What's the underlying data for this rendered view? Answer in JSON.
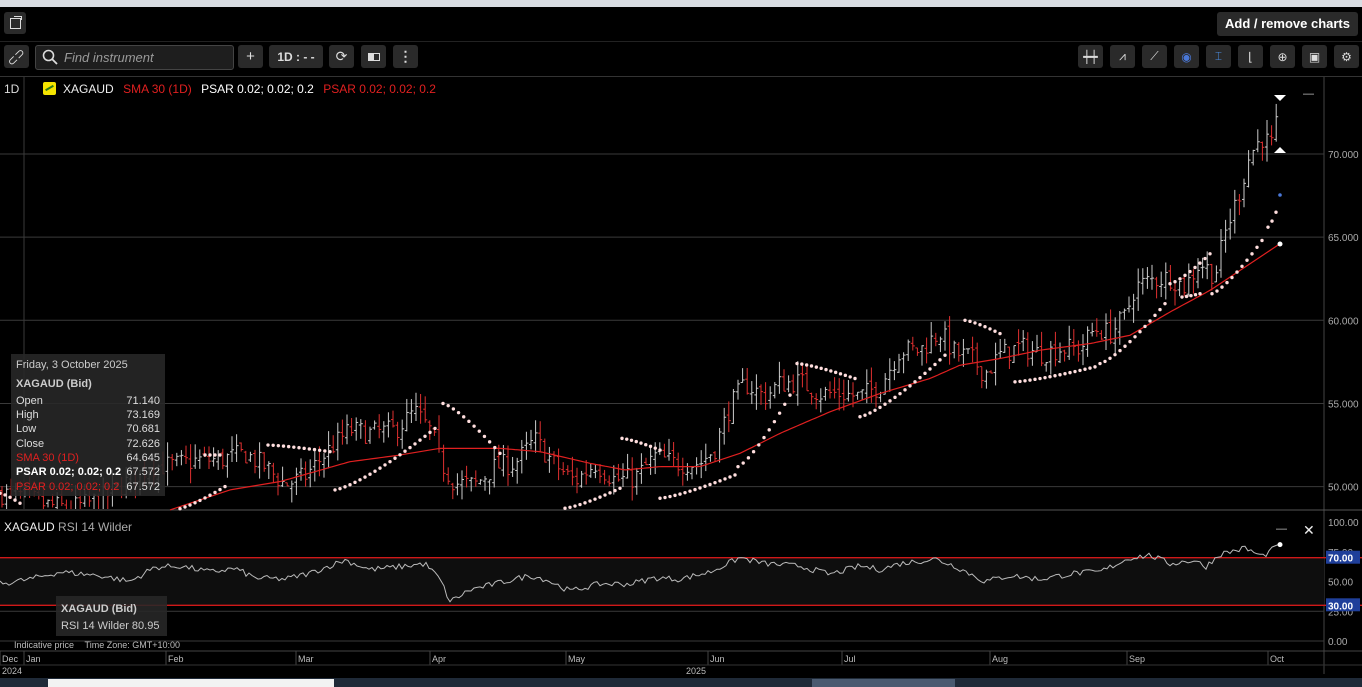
{
  "toolbar": {
    "add_remove_label": "Add / remove charts",
    "search_placeholder": "Find instrument",
    "add_label": "+",
    "interval_label": "1D : - -"
  },
  "legend": {
    "timeframe": "1D",
    "instrument": "XAGAUD",
    "sma": "SMA 30 (1D)",
    "psar1": "PSAR 0.02; 0.02; 0.2",
    "psar2": "PSAR 0.02; 0.02; 0.2"
  },
  "info_box": {
    "date": "Friday, 3 October 2025",
    "instrument": "XAGAUD (Bid)",
    "open_label": "Open",
    "open": "71.140",
    "high_label": "High",
    "high": "73.169",
    "low_label": "Low",
    "low": "70.681",
    "close_label": "Close",
    "close": "72.626",
    "sma_label": "SMA 30 (1D)",
    "sma": "64.645",
    "psar1_label": "PSAR 0.02; 0.02; 0.2",
    "psar1": "67.572",
    "psar2_label": "PSAR 0.02; 0.02; 0.2",
    "psar2": "67.572"
  },
  "rsi": {
    "label_instrument": "XAGAUD",
    "label_indicator": "RSI 14 Wilder",
    "info_instrument": "XAGAUD (Bid)",
    "info_value_label": "RSI 14 Wilder 80.95",
    "ticks": [
      "100.00",
      "75.00",
      "50.00",
      "25.00",
      "0.00"
    ],
    "upper_level": "70.00",
    "lower_level": "30.00",
    "close_glyph": "✕",
    "minimize_glyph": "—"
  },
  "footer": {
    "indicative": "Indicative price",
    "timezone": "Time Zone: GMT+10:00"
  },
  "colors": {
    "up": "#cccccc",
    "down": "#e03030",
    "sma": "#e02020",
    "psar": "#ffdede",
    "rsi": "#bbbbbb",
    "level_line": "#d01818"
  },
  "chart_data": {
    "type": "ohlc",
    "price_ticks": [
      "70.000",
      "65.000",
      "60.000",
      "55.000",
      "50.000"
    ],
    "ylim": [
      48.6,
      73.6
    ],
    "x_labels": [
      "Dec",
      "Jan",
      "Feb",
      "Mar",
      "Apr",
      "May",
      "Jun",
      "Jul",
      "Aug",
      "Sep",
      "Oct"
    ],
    "year_labels": [
      "2024",
      "2025"
    ],
    "anchors": [
      {
        "x": 0,
        "c": 49.6
      },
      {
        "x": 25,
        "c": 49.4
      },
      {
        "x": 45,
        "c": 48.9
      },
      {
        "x": 70,
        "c": 48.7
      },
      {
        "x": 100,
        "c": 49.2
      },
      {
        "x": 125,
        "c": 50.2
      },
      {
        "x": 150,
        "c": 51.2
      },
      {
        "x": 175,
        "c": 51.3
      },
      {
        "x": 200,
        "c": 51.6
      },
      {
        "x": 220,
        "c": 51.6
      },
      {
        "x": 245,
        "c": 52.0
      },
      {
        "x": 265,
        "c": 51.2
      },
      {
        "x": 285,
        "c": 50.1
      },
      {
        "x": 305,
        "c": 50.6
      },
      {
        "x": 330,
        "c": 52.3
      },
      {
        "x": 350,
        "c": 53.4
      },
      {
        "x": 370,
        "c": 53.2
      },
      {
        "x": 395,
        "c": 53.4
      },
      {
        "x": 415,
        "c": 54.5
      },
      {
        "x": 432,
        "c": 53.2
      },
      {
        "x": 440,
        "c": 51.5
      },
      {
        "x": 455,
        "c": 50.2
      },
      {
        "x": 475,
        "c": 50.1
      },
      {
        "x": 495,
        "c": 51.2
      },
      {
        "x": 515,
        "c": 51.4
      },
      {
        "x": 535,
        "c": 52.8
      },
      {
        "x": 555,
        "c": 51.3
      },
      {
        "x": 575,
        "c": 50.3
      },
      {
        "x": 595,
        "c": 51.4
      },
      {
        "x": 615,
        "c": 50.4
      },
      {
        "x": 635,
        "c": 50.5
      },
      {
        "x": 655,
        "c": 51.8
      },
      {
        "x": 675,
        "c": 51.4
      },
      {
        "x": 700,
        "c": 51.4
      },
      {
        "x": 715,
        "c": 52.3
      },
      {
        "x": 730,
        "c": 54.8
      },
      {
        "x": 745,
        "c": 56.2
      },
      {
        "x": 765,
        "c": 55.4
      },
      {
        "x": 780,
        "c": 56.2
      },
      {
        "x": 800,
        "c": 56.3
      },
      {
        "x": 820,
        "c": 55.6
      },
      {
        "x": 840,
        "c": 55.6
      },
      {
        "x": 860,
        "c": 55.4
      },
      {
        "x": 880,
        "c": 56.1
      },
      {
        "x": 900,
        "c": 58.2
      },
      {
        "x": 920,
        "c": 58.2
      },
      {
        "x": 940,
        "c": 59.3
      },
      {
        "x": 955,
        "c": 58.0
      },
      {
        "x": 970,
        "c": 57.8
      },
      {
        "x": 985,
        "c": 56.8
      },
      {
        "x": 1000,
        "c": 57.9
      },
      {
        "x": 1020,
        "c": 58.4
      },
      {
        "x": 1040,
        "c": 58.0
      },
      {
        "x": 1060,
        "c": 58.3
      },
      {
        "x": 1080,
        "c": 58.3
      },
      {
        "x": 1095,
        "c": 59.5
      },
      {
        "x": 1110,
        "c": 59.2
      },
      {
        "x": 1125,
        "c": 60.2
      },
      {
        "x": 1135,
        "c": 62.0
      },
      {
        "x": 1150,
        "c": 62.4
      },
      {
        "x": 1170,
        "c": 62.6
      },
      {
        "x": 1185,
        "c": 62.0
      },
      {
        "x": 1200,
        "c": 63.5
      },
      {
        "x": 1215,
        "c": 62.7
      },
      {
        "x": 1225,
        "c": 65.2
      },
      {
        "x": 1240,
        "c": 67.8
      },
      {
        "x": 1250,
        "c": 70.0
      },
      {
        "x": 1262,
        "c": 71.0
      },
      {
        "x": 1272,
        "c": 70.5
      },
      {
        "x": 1280,
        "c": 72.6
      }
    ],
    "sma_anchors": [
      {
        "x": 170,
        "v": 48.6
      },
      {
        "x": 230,
        "v": 49.8
      },
      {
        "x": 280,
        "v": 50.3
      },
      {
        "x": 350,
        "v": 51.5
      },
      {
        "x": 400,
        "v": 51.9
      },
      {
        "x": 440,
        "v": 52.3
      },
      {
        "x": 500,
        "v": 52.3
      },
      {
        "x": 540,
        "v": 52.1
      },
      {
        "x": 590,
        "v": 51.4
      },
      {
        "x": 625,
        "v": 51.0
      },
      {
        "x": 660,
        "v": 51.2
      },
      {
        "x": 700,
        "v": 51.2
      },
      {
        "x": 740,
        "v": 52.0
      },
      {
        "x": 780,
        "v": 53.2
      },
      {
        "x": 830,
        "v": 54.5
      },
      {
        "x": 880,
        "v": 55.6
      },
      {
        "x": 930,
        "v": 56.5
      },
      {
        "x": 960,
        "v": 57.3
      },
      {
        "x": 1000,
        "v": 57.7
      },
      {
        "x": 1040,
        "v": 58.2
      },
      {
        "x": 1090,
        "v": 58.6
      },
      {
        "x": 1130,
        "v": 59.1
      },
      {
        "x": 1170,
        "v": 60.5
      },
      {
        "x": 1210,
        "v": 61.8
      },
      {
        "x": 1240,
        "v": 63.0
      },
      {
        "x": 1265,
        "v": 64.0
      },
      {
        "x": 1280,
        "v": 64.6
      }
    ],
    "psar_segments": [
      {
        "x0": 0,
        "x1": 20,
        "v0": 49.6,
        "v1": 49.0
      },
      {
        "x0": 175,
        "x1": 225,
        "v0": 48.6,
        "v1": 50.0
      },
      {
        "x0": 205,
        "x1": 220,
        "v0": 51.9,
        "v1": 51.9
      },
      {
        "x0": 268,
        "x1": 330,
        "v0": 52.5,
        "v1": 52.1
      },
      {
        "x0": 335,
        "x1": 435,
        "v0": 49.8,
        "v1": 53.5
      },
      {
        "x0": 443,
        "x1": 500,
        "v0": 55.0,
        "v1": 52.0
      },
      {
        "x0": 565,
        "x1": 620,
        "v0": 48.7,
        "v1": 49.9
      },
      {
        "x0": 622,
        "x1": 660,
        "v0": 52.9,
        "v1": 52.2
      },
      {
        "x0": 660,
        "x1": 735,
        "v0": 49.3,
        "v1": 50.7
      },
      {
        "x0": 738,
        "x1": 790,
        "v0": 51.2,
        "v1": 55.5
      },
      {
        "x0": 797,
        "x1": 855,
        "v0": 57.4,
        "v1": 56.5
      },
      {
        "x0": 860,
        "x1": 945,
        "v0": 54.2,
        "v1": 57.9
      },
      {
        "x0": 965,
        "x1": 1000,
        "v0": 60.0,
        "v1": 59.2
      },
      {
        "x0": 1015,
        "x1": 1095,
        "v0": 56.3,
        "v1": 57.2
      },
      {
        "x0": 1100,
        "x1": 1165,
        "v0": 57.4,
        "v1": 61.0
      },
      {
        "x0": 1170,
        "x1": 1210,
        "v0": 62.2,
        "v1": 64.0
      },
      {
        "x0": 1182,
        "x1": 1200,
        "v0": 61.4,
        "v1": 61.6
      },
      {
        "x0": 1212,
        "x1": 1262,
        "v0": 61.6,
        "v1": 64.8
      },
      {
        "x0": 1268,
        "x1": 1276,
        "v0": 65.6,
        "v1": 66.5
      }
    ],
    "rsi_anchors": [
      {
        "x": 0,
        "v": 48
      },
      {
        "x": 30,
        "v": 52
      },
      {
        "x": 60,
        "v": 58
      },
      {
        "x": 100,
        "v": 55
      },
      {
        "x": 130,
        "v": 50
      },
      {
        "x": 155,
        "v": 62
      },
      {
        "x": 180,
        "v": 63
      },
      {
        "x": 210,
        "v": 58
      },
      {
        "x": 235,
        "v": 61
      },
      {
        "x": 255,
        "v": 53
      },
      {
        "x": 285,
        "v": 52
      },
      {
        "x": 310,
        "v": 57
      },
      {
        "x": 345,
        "v": 68
      },
      {
        "x": 370,
        "v": 60
      },
      {
        "x": 395,
        "v": 62
      },
      {
        "x": 425,
        "v": 65
      },
      {
        "x": 440,
        "v": 52
      },
      {
        "x": 450,
        "v": 33
      },
      {
        "x": 470,
        "v": 43
      },
      {
        "x": 495,
        "v": 48
      },
      {
        "x": 530,
        "v": 55
      },
      {
        "x": 545,
        "v": 52
      },
      {
        "x": 570,
        "v": 42
      },
      {
        "x": 600,
        "v": 48
      },
      {
        "x": 630,
        "v": 48
      },
      {
        "x": 655,
        "v": 53
      },
      {
        "x": 680,
        "v": 52
      },
      {
        "x": 710,
        "v": 58
      },
      {
        "x": 740,
        "v": 70
      },
      {
        "x": 765,
        "v": 65
      },
      {
        "x": 800,
        "v": 63
      },
      {
        "x": 830,
        "v": 56
      },
      {
        "x": 860,
        "v": 63
      },
      {
        "x": 880,
        "v": 60
      },
      {
        "x": 900,
        "v": 65
      },
      {
        "x": 935,
        "v": 69
      },
      {
        "x": 955,
        "v": 63
      },
      {
        "x": 985,
        "v": 50
      },
      {
        "x": 1010,
        "v": 55
      },
      {
        "x": 1040,
        "v": 52
      },
      {
        "x": 1075,
        "v": 57
      },
      {
        "x": 1100,
        "v": 58
      },
      {
        "x": 1130,
        "v": 70
      },
      {
        "x": 1150,
        "v": 72
      },
      {
        "x": 1170,
        "v": 65
      },
      {
        "x": 1195,
        "v": 68
      },
      {
        "x": 1205,
        "v": 62
      },
      {
        "x": 1220,
        "v": 73
      },
      {
        "x": 1245,
        "v": 78
      },
      {
        "x": 1262,
        "v": 71
      },
      {
        "x": 1280,
        "v": 80.95
      }
    ]
  }
}
